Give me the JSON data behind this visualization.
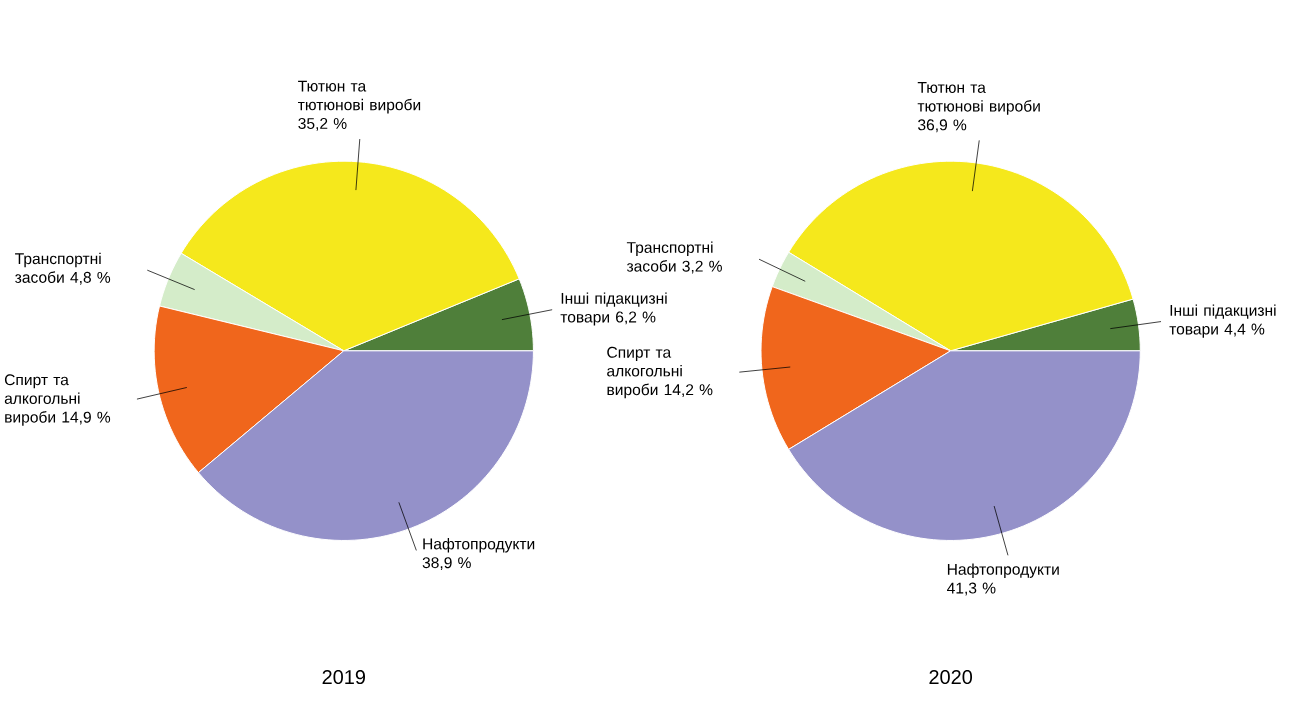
{
  "chart_data": [
    {
      "type": "pie",
      "title": "2019",
      "categories": [
        "Інші підакцизні товари",
        "Тютюн та тютюнові вироби",
        "Транспортні засоби",
        "Спирт та алкогольні вироби",
        "Нафтопродукти"
      ],
      "values": [
        6.2,
        35.2,
        4.8,
        14.9,
        38.9
      ],
      "value_labels": [
        "6,2 %",
        "35,2 %",
        "4,8 %",
        "14,9 %",
        "38,9 %"
      ],
      "colors": [
        "#4f7f3a",
        "#f5e81c",
        "#d4ecc9",
        "#f0661c",
        "#9491c9"
      ]
    },
    {
      "type": "pie",
      "title": "2020",
      "categories": [
        "Інші підакцизні товари",
        "Тютюн та тютюнові вироби",
        "Транспортні засоби",
        "Спирт та алкогольні вироби",
        "Нафтопродукти"
      ],
      "values": [
        4.4,
        36.9,
        3.2,
        14.2,
        41.3
      ],
      "value_labels": [
        "4,4 %",
        "36,9 %",
        "3,2 %",
        "14,2 %",
        "41,3 %"
      ],
      "colors": [
        "#4f7f3a",
        "#f5e81c",
        "#d4ecc9",
        "#f0661c",
        "#9491c9"
      ]
    }
  ]
}
